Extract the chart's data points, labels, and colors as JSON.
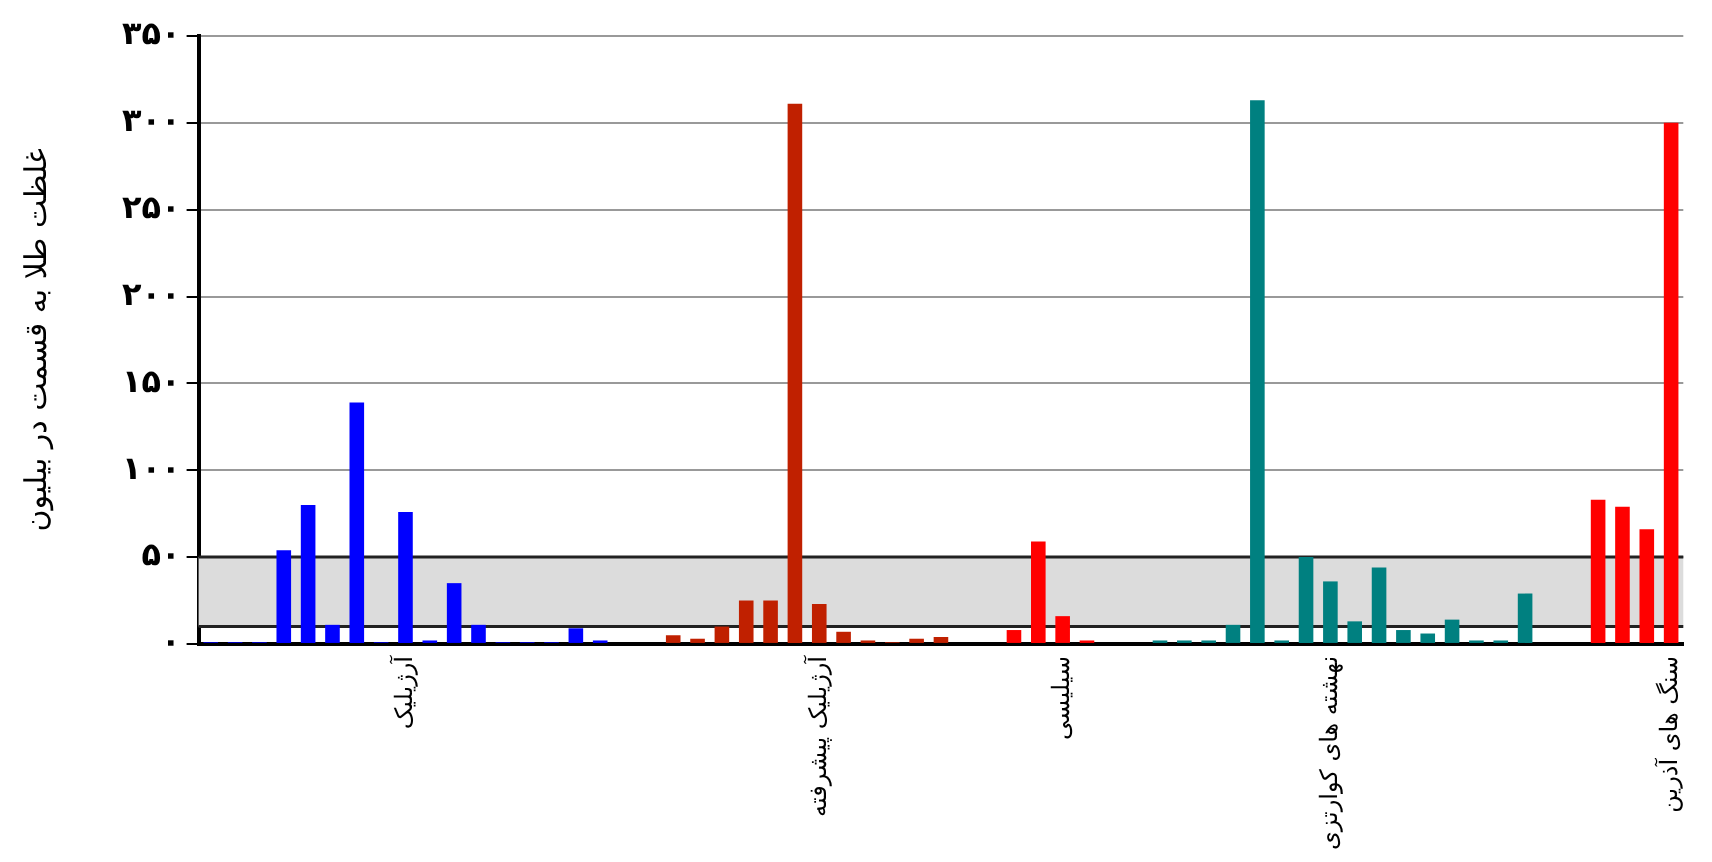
{
  "chart_data": {
    "type": "bar",
    "ylabel": "غلظت طلا به قسمت در بیلیون",
    "categories": [
      null,
      null,
      null,
      null,
      null,
      null,
      null,
      null,
      "آرژیلیک",
      null,
      null,
      null,
      null,
      null,
      null,
      null,
      null,
      null,
      null,
      null,
      null,
      null,
      null,
      null,
      null,
      "آرژیلیک پیشرفته",
      null,
      null,
      null,
      null,
      null,
      null,
      null,
      null,
      null,
      "سیلیسی",
      null,
      null,
      null,
      null,
      null,
      null,
      null,
      null,
      null,
      null,
      "نهشته های کوارتزی",
      null,
      null,
      null,
      null,
      null,
      null,
      null,
      null,
      null,
      null,
      null,
      null,
      null,
      "سنگ های آذرین"
    ],
    "values": [
      1,
      1,
      1,
      54,
      80,
      11,
      139,
      1,
      76,
      2,
      35,
      11,
      1,
      1,
      1,
      9,
      2,
      null,
      null,
      5,
      3,
      10,
      25,
      25,
      311,
      23,
      7,
      2,
      1,
      3,
      4,
      null,
      null,
      8,
      59,
      16,
      2,
      null,
      null,
      2,
      2,
      2,
      11,
      313,
      2,
      50,
      36,
      13,
      44,
      8,
      6,
      14,
      2,
      2,
      29,
      null,
      null,
      83,
      79,
      66,
      300
    ],
    "colors": [
      "#0000ff",
      "#0000ff",
      "#0000ff",
      "#0000ff",
      "#0000ff",
      "#0000ff",
      "#0000ff",
      "#0000ff",
      "#0000ff",
      "#0000ff",
      "#0000ff",
      "#0000ff",
      "#0000ff",
      "#0000ff",
      "#0000ff",
      "#0000ff",
      "#0000ff",
      "#0000ff",
      "#0000ff",
      "#c02000",
      "#c02000",
      "#c02000",
      "#c02000",
      "#c02000",
      "#c02000",
      "#c02000",
      "#c02000",
      "#c02000",
      "#c02000",
      "#c02000",
      "#c02000",
      "#c02000",
      "#c02000",
      "#ff0000",
      "#ff0000",
      "#ff0000",
      "#ff0000",
      "#008080",
      "#008080",
      "#008080",
      "#008080",
      "#008080",
      "#008080",
      "#008080",
      "#008080",
      "#008080",
      "#008080",
      "#008080",
      "#008080",
      "#008080",
      "#008080",
      "#008080",
      "#008080",
      "#008080",
      "#008080",
      "#008080",
      "#008080",
      "#ff0000",
      "#ff0000",
      "#ff0000",
      "#ff0000"
    ],
    "ylim": [
      0,
      350
    ],
    "yticks": [
      {
        "value": 0,
        "label": "۰"
      },
      {
        "value": 50,
        "label": "۵۰"
      },
      {
        "value": 100,
        "label": "۱۰۰"
      },
      {
        "value": 150,
        "label": "۱۵۰"
      },
      {
        "value": 200,
        "label": "۲۰۰"
      },
      {
        "value": 250,
        "label": "۲۵۰"
      },
      {
        "value": 300,
        "label": "۳۰۰"
      },
      {
        "value": 350,
        "label": "۳۵۰"
      }
    ],
    "bands": [
      {
        "axis": "y",
        "from": 10,
        "to": 50,
        "color": "#dcdcdc"
      }
    ],
    "ref_lines": [
      {
        "axis": "y",
        "value": 10,
        "color": "#222222"
      },
      {
        "axis": "y",
        "value": 50,
        "color": "#222222"
      }
    ],
    "grid": "y",
    "legend": false
  }
}
